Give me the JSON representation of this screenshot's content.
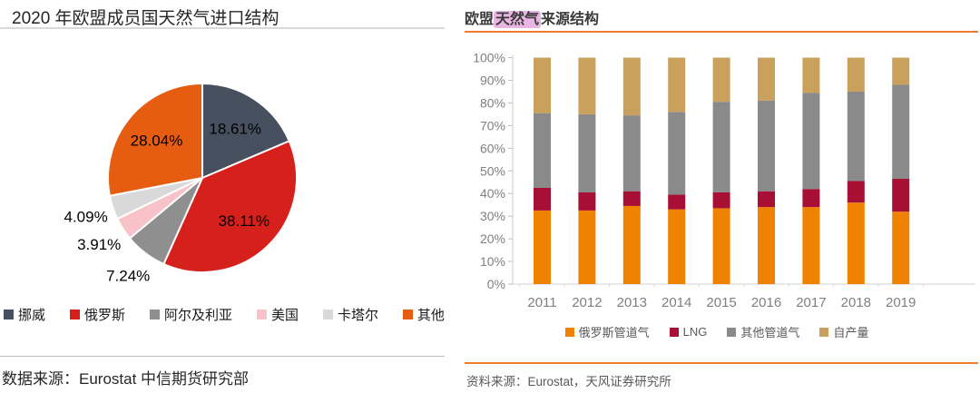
{
  "left_panel": {
    "title": "2020 年欧盟成员国天然气进口结构",
    "source": "数据来源：Eurostat 中信期货研究部",
    "chart_data": {
      "type": "pie",
      "title": "2020 年欧盟成员国天然气进口结构",
      "labels": [
        "挪威",
        "俄罗斯",
        "阿尔及利亚",
        "美国",
        "卡塔尔",
        "其他"
      ],
      "values": [
        18.61,
        38.11,
        7.24,
        3.91,
        4.09,
        28.04
      ],
      "colors": [
        "#47505f",
        "#d6201c",
        "#8f8f8f",
        "#f8c3c8",
        "#d9d9d9",
        "#e65c10"
      ],
      "data_labels": [
        "18.61%",
        "38.11%",
        "7.24%",
        "3.91%",
        "4.09%",
        "28.04%"
      ],
      "start_angle_deg_from_top": 0,
      "direction": "clockwise",
      "legend_position": "bottom"
    }
  },
  "right_panel": {
    "title_prefix": "欧盟",
    "title_highlight": "天然气",
    "title_suffix": "来源结构",
    "highlight_color": "#e9b6e3",
    "accent_color": "#ed7d31",
    "source": "资料来源：Eurostat，天风证券研究所",
    "chart_data": {
      "type": "bar",
      "stacked": true,
      "title": "欧盟天然气来源结构",
      "categories": [
        "2011",
        "2012",
        "2013",
        "2014",
        "2015",
        "2016",
        "2017",
        "2018",
        "2019"
      ],
      "series": [
        {
          "name": "俄罗斯管道气",
          "color": "#ef8200",
          "values": [
            32.5,
            32.5,
            34.5,
            33.0,
            33.5,
            34.0,
            34.0,
            36.0,
            32.0
          ]
        },
        {
          "name": "LNG",
          "color": "#a80f35",
          "values": [
            10.0,
            8.0,
            6.5,
            6.5,
            7.0,
            7.0,
            8.0,
            9.5,
            14.5
          ]
        },
        {
          "name": "其他管道气",
          "color": "#8a8a8a",
          "values": [
            33.0,
            34.5,
            33.5,
            36.5,
            40.0,
            40.0,
            42.5,
            39.5,
            41.5
          ]
        },
        {
          "name": "自产量",
          "color": "#c9a05c",
          "values": [
            24.5,
            25.0,
            25.5,
            24.0,
            19.5,
            19.0,
            15.5,
            15.0,
            12.0
          ]
        }
      ],
      "ylim": [
        0,
        100
      ],
      "ytick_step": 10,
      "ytick_labels": [
        "0%",
        "10%",
        "20%",
        "30%",
        "40%",
        "50%",
        "60%",
        "70%",
        "80%",
        "90%",
        "100%"
      ],
      "grid": false,
      "legend_position": "bottom"
    }
  }
}
